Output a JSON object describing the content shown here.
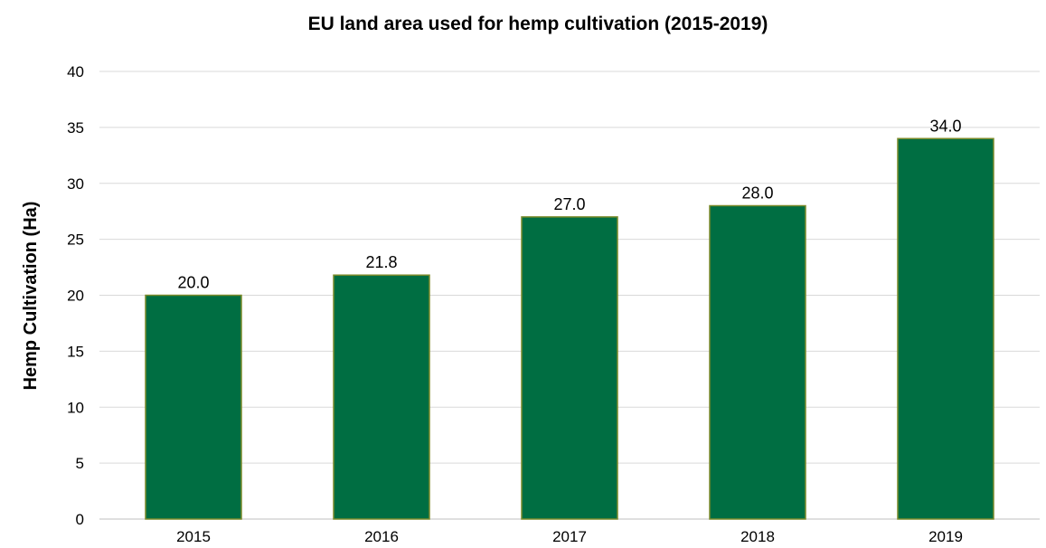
{
  "chart_data": {
    "type": "bar",
    "title": "EU land area used for hemp cultivation (2015-2019)",
    "xlabel": "",
    "ylabel": "Hemp  Cultivation (Ha)",
    "categories": [
      "2015",
      "2016",
      "2017",
      "2018",
      "2019"
    ],
    "values": [
      20.0,
      21.8,
      27.0,
      28.0,
      34.0
    ],
    "data_labels": [
      "20.0",
      "21.8",
      "27.0",
      "28.0",
      "34.0"
    ],
    "ylim": [
      0,
      40
    ],
    "yticks": [
      0,
      5,
      10,
      15,
      20,
      25,
      30,
      35,
      40
    ],
    "grid": true,
    "legend": "none",
    "colors": {
      "bar_fill": "#006e42",
      "bar_stroke": "#7a8a2a",
      "grid": "#d9d9d9"
    }
  }
}
